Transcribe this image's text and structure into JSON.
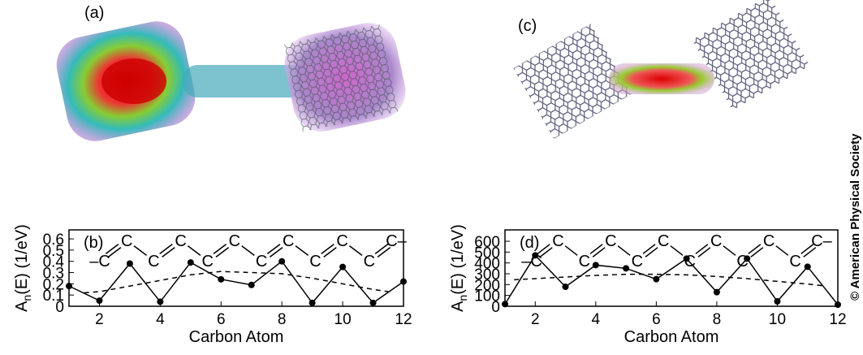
{
  "figure": {
    "label_a": "(a)",
    "label_c": "(c)",
    "copyright": "© American Physical Society"
  },
  "chart_data": [
    {
      "type": "line",
      "label": "(b)",
      "xlabel": "Carbon Atom",
      "ylabel": {
        "main": "A",
        "sub": "n",
        "rest": "(E) (1/eV)"
      },
      "xlim": [
        1,
        12
      ],
      "ylim": [
        0,
        0.68
      ],
      "xticks": [
        2,
        4,
        6,
        8,
        10,
        12
      ],
      "yticks": [
        0,
        0.1,
        0.2,
        0.3,
        0.4,
        0.5,
        0.6
      ],
      "chain": [
        "–C",
        "C",
        "C",
        "C",
        "C",
        "C",
        "C",
        "C",
        "C",
        "C",
        "C",
        "C–"
      ],
      "series": [
        {
          "x": [
            1,
            2,
            3,
            4,
            5,
            6,
            7,
            8,
            9,
            10,
            11,
            12
          ],
          "values": [
            0.18,
            0.05,
            0.38,
            0.04,
            0.39,
            0.24,
            0.19,
            0.4,
            0.03,
            0.35,
            0.03,
            0.22
          ],
          "color": "#000",
          "markers": true
        },
        {
          "x": [
            1.5,
            2,
            3,
            4,
            5,
            6,
            7,
            8,
            9,
            10,
            11,
            11.5
          ],
          "values": [
            0.12,
            0.13,
            0.18,
            0.23,
            0.28,
            0.31,
            0.3,
            0.29,
            0.25,
            0.2,
            0.15,
            0.13
          ],
          "color": "#000",
          "dash": true
        }
      ]
    },
    {
      "type": "line",
      "label": "(d)",
      "xlabel": "Carbon Atom",
      "ylabel": {
        "main": "A",
        "sub": "n",
        "rest": "(E) (1/eV)"
      },
      "xlim": [
        1,
        12
      ],
      "ylim": [
        0,
        705
      ],
      "xticks": [
        2,
        4,
        6,
        8,
        10,
        12
      ],
      "yticks": [
        0,
        100,
        200,
        300,
        400,
        500,
        600
      ],
      "chain": [
        "–C",
        "C",
        "C",
        "C",
        "C",
        "C",
        "C",
        "C",
        "C",
        "C",
        "C",
        "C–"
      ],
      "series": [
        {
          "x": [
            1,
            2,
            3,
            4,
            5,
            6,
            7,
            8,
            9,
            10,
            11,
            12
          ],
          "values": [
            20,
            470,
            180,
            380,
            350,
            250,
            440,
            130,
            440,
            45,
            365,
            15
          ],
          "color": "#000",
          "markers": true
        },
        {
          "x": [
            1.3,
            2,
            3,
            4,
            5,
            6,
            7,
            8,
            9,
            10,
            11,
            11.5
          ],
          "values": [
            245,
            255,
            270,
            285,
            295,
            295,
            290,
            275,
            255,
            230,
            205,
            190
          ],
          "color": "#000",
          "dash": true
        }
      ]
    }
  ]
}
